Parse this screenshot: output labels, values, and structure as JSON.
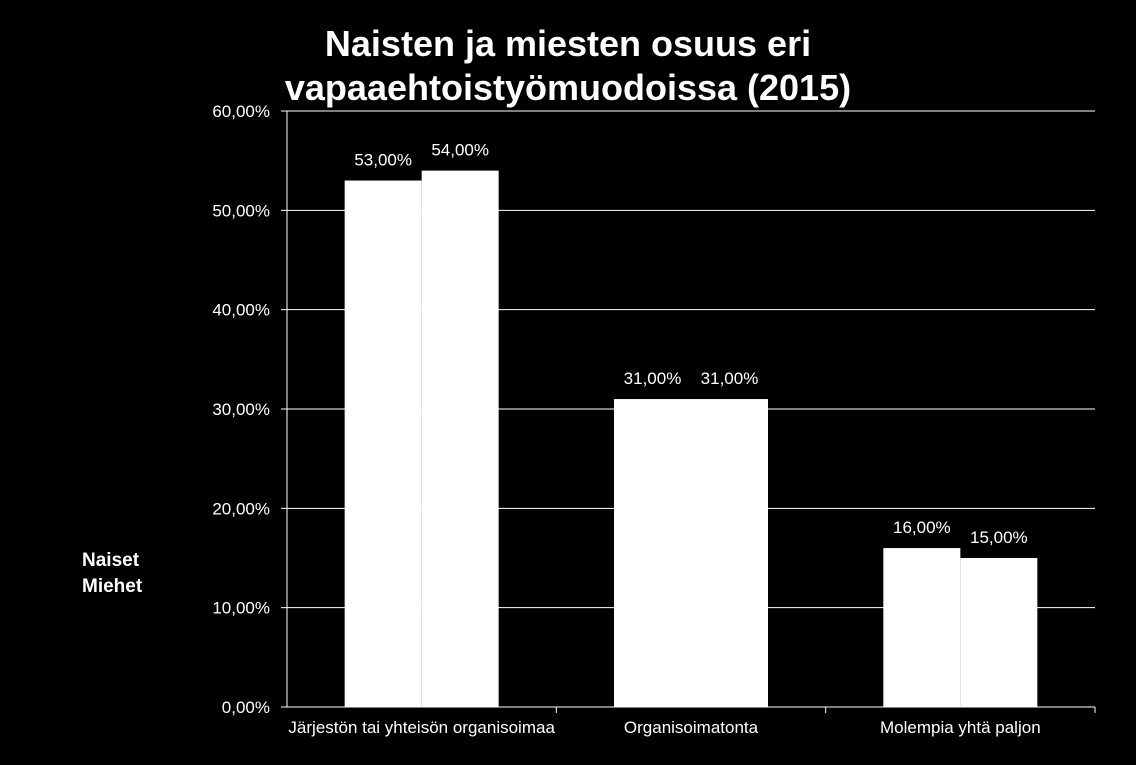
{
  "chart_data": {
    "type": "bar",
    "title_lines": [
      "Naisten ja miesten osuus eri",
      "vapaaehtoistyömuodoissa (2015)"
    ],
    "categories": [
      "Järjestön tai yhteisön organisoimaa",
      "Organisoimatonta",
      "Molempia yhtä paljon"
    ],
    "series": [
      {
        "name": "Naiset",
        "values": [
          53,
          31,
          16
        ],
        "labels": [
          "53,00%",
          "31,00%",
          "16,00%"
        ],
        "color": "#ffffff"
      },
      {
        "name": "Miehet",
        "values": [
          54,
          31,
          15
        ],
        "labels": [
          "54,00%",
          "31,00%",
          "15,00%"
        ],
        "color": "#ffffff"
      }
    ],
    "yticks": [
      "0,00%",
      "10,00%",
      "20,00%",
      "30,00%",
      "40,00%",
      "50,00%",
      "60,00%"
    ],
    "ylim": [
      0,
      60
    ],
    "grid": true,
    "legend_position": "left",
    "background": "#000000",
    "foreground": "#ffffff"
  }
}
